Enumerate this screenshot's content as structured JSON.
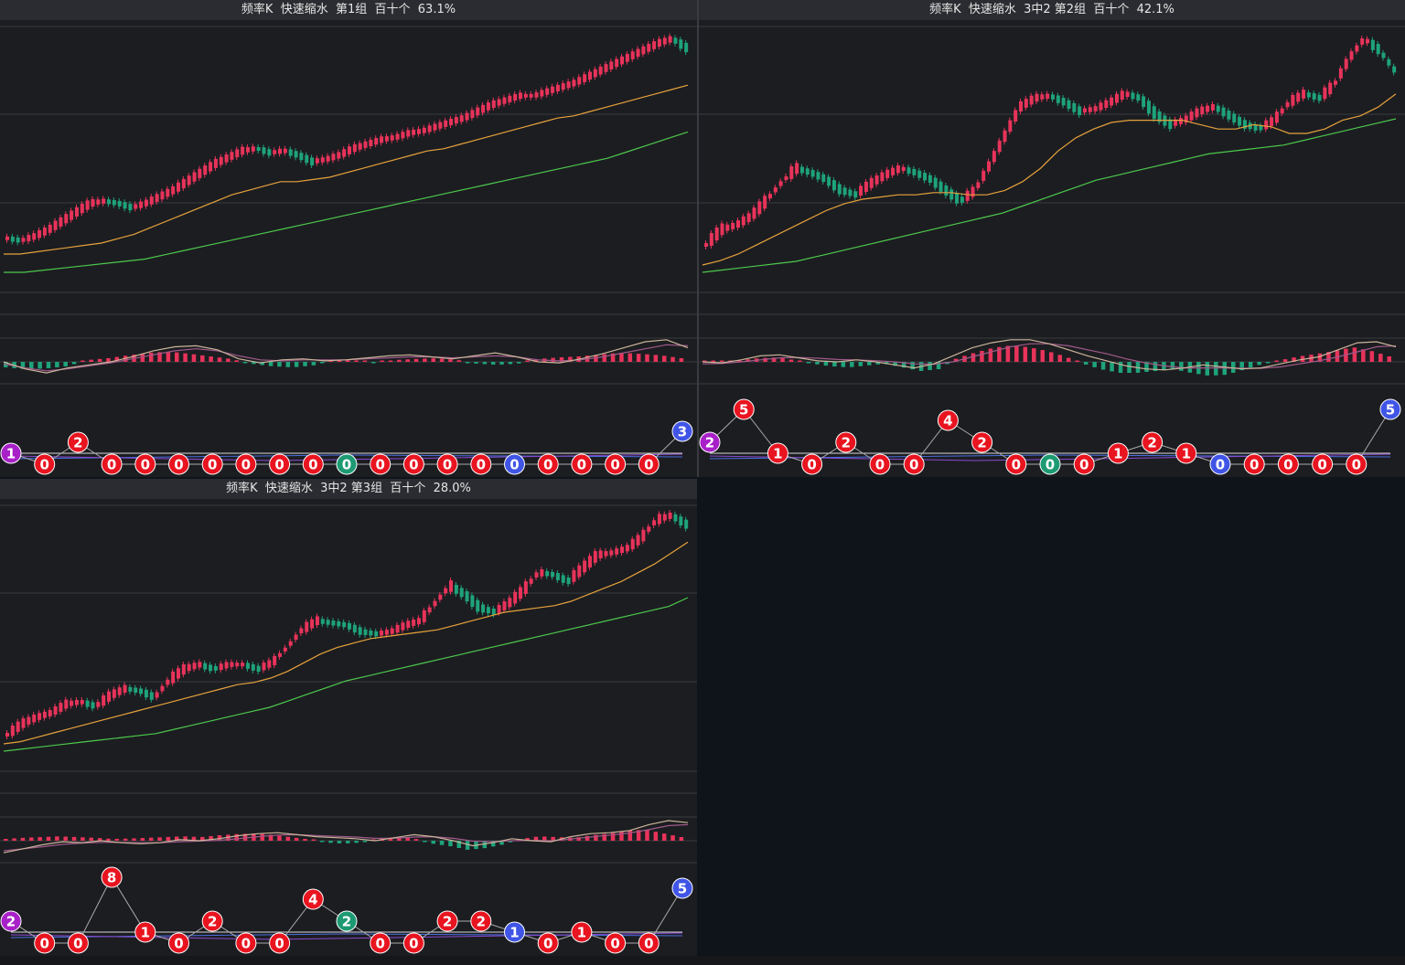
{
  "colors": {
    "up": "#e8335a",
    "down": "#1ea37a",
    "ma_short": "#e6a23c",
    "ma_long": "#4cc94c",
    "macd_dif": "#c9b49a",
    "macd_dea": "#a05a8a",
    "ball_red": "#e8141f",
    "ball_blue": "#4055e6",
    "ball_green": "#1d9a72",
    "ball_purple": "#a820c8"
  },
  "panels": [
    {
      "title": "频率K  快速缩水  第1组  百十个  63.1%",
      "trend": [
        0.08,
        0.07,
        0.09,
        0.12,
        0.16,
        0.2,
        0.24,
        0.25,
        0.24,
        0.22,
        0.24,
        0.27,
        0.3,
        0.34,
        0.38,
        0.42,
        0.45,
        0.48,
        0.49,
        0.47,
        0.48,
        0.46,
        0.43,
        0.44,
        0.46,
        0.49,
        0.51,
        0.53,
        0.54,
        0.56,
        0.57,
        0.59,
        0.61,
        0.63,
        0.66,
        0.69,
        0.71,
        0.73,
        0.73,
        0.75,
        0.77,
        0.79,
        0.82,
        0.85,
        0.88,
        0.91,
        0.94,
        0.97,
        0.99,
        0.95
      ],
      "ma_short": [
        0.05,
        0.05,
        0.06,
        0.07,
        0.08,
        0.09,
        0.1,
        0.12,
        0.14,
        0.17,
        0.2,
        0.23,
        0.26,
        0.29,
        0.32,
        0.34,
        0.36,
        0.38,
        0.38,
        0.39,
        0.4,
        0.42,
        0.44,
        0.46,
        0.48,
        0.5,
        0.52,
        0.53,
        0.55,
        0.57,
        0.59,
        0.61,
        0.63,
        0.65,
        0.67,
        0.68,
        0.7,
        0.72,
        0.74,
        0.76,
        0.78,
        0.8,
        0.82
      ],
      "ma_long": [
        0.0,
        0.0,
        0.01,
        0.02,
        0.03,
        0.04,
        0.05,
        0.06,
        0.08,
        0.1,
        0.12,
        0.14,
        0.16,
        0.18,
        0.2,
        0.22,
        0.24,
        0.26,
        0.28,
        0.3,
        0.32,
        0.34,
        0.36,
        0.38,
        0.4,
        0.42,
        0.44,
        0.46,
        0.48,
        0.5,
        0.52,
        0.55,
        0.58,
        0.61,
        0.64
      ],
      "dif": [
        0.0,
        -0.35,
        -0.55,
        -0.3,
        -0.15,
        0.0,
        0.25,
        0.55,
        0.75,
        0.8,
        0.6,
        0.15,
        -0.05,
        0.1,
        0.15,
        0.05,
        0.1,
        0.2,
        0.3,
        0.35,
        0.25,
        0.15,
        0.3,
        0.45,
        0.25,
        0.0,
        -0.05,
        0.15,
        0.4,
        0.7,
        1.0,
        1.1,
        0.7
      ],
      "dea": [
        -0.1,
        -0.3,
        -0.45,
        -0.35,
        -0.2,
        -0.05,
        0.15,
        0.35,
        0.55,
        0.65,
        0.55,
        0.3,
        0.1,
        0.05,
        0.1,
        0.1,
        0.1,
        0.15,
        0.2,
        0.25,
        0.25,
        0.2,
        0.25,
        0.3,
        0.25,
        0.1,
        0.05,
        0.1,
        0.25,
        0.45,
        0.65,
        0.85,
        0.8
      ],
      "hist": [
        -0.15,
        -0.2,
        -0.18,
        -0.12,
        0.05,
        0.1,
        0.18,
        0.25,
        0.28,
        0.22,
        0.15,
        0.08,
        -0.05,
        -0.12,
        -0.15,
        -0.1,
        0.04,
        0.05,
        -0.03,
        0.05,
        0.08,
        0.1,
        0.06,
        -0.05,
        -0.08,
        -0.05,
        0.08,
        0.12,
        0.15,
        0.2,
        0.25,
        0.22,
        0.18,
        0.1
      ],
      "balls": [
        {
          "v": "1",
          "c": "purple",
          "lvl": 1
        },
        {
          "v": "0",
          "c": "red",
          "lvl": 0
        },
        {
          "v": "2",
          "c": "red",
          "lvl": 2
        },
        {
          "v": "0",
          "c": "red",
          "lvl": 0
        },
        {
          "v": "0",
          "c": "red",
          "lvl": 0
        },
        {
          "v": "0",
          "c": "red",
          "lvl": 0
        },
        {
          "v": "0",
          "c": "red",
          "lvl": 0
        },
        {
          "v": "0",
          "c": "red",
          "lvl": 0
        },
        {
          "v": "0",
          "c": "red",
          "lvl": 0
        },
        {
          "v": "0",
          "c": "red",
          "lvl": 0
        },
        {
          "v": "0",
          "c": "green",
          "lvl": 0
        },
        {
          "v": "0",
          "c": "red",
          "lvl": 0
        },
        {
          "v": "0",
          "c": "red",
          "lvl": 0
        },
        {
          "v": "0",
          "c": "red",
          "lvl": 0
        },
        {
          "v": "0",
          "c": "red",
          "lvl": 0
        },
        {
          "v": "0",
          "c": "blue",
          "lvl": 0
        },
        {
          "v": "0",
          "c": "red",
          "lvl": 0
        },
        {
          "v": "0",
          "c": "red",
          "lvl": 0
        },
        {
          "v": "0",
          "c": "red",
          "lvl": 0
        },
        {
          "v": "0",
          "c": "red",
          "lvl": 0
        },
        {
          "v": "3",
          "c": "blue",
          "lvl": 3
        }
      ]
    },
    {
      "title": "频率K  快速缩水  3中2 第2组  百十个  42.1%",
      "trend": [
        0.05,
        0.12,
        0.14,
        0.18,
        0.25,
        0.33,
        0.4,
        0.38,
        0.35,
        0.3,
        0.28,
        0.33,
        0.37,
        0.4,
        0.38,
        0.35,
        0.3,
        0.25,
        0.3,
        0.42,
        0.55,
        0.68,
        0.72,
        0.73,
        0.7,
        0.66,
        0.67,
        0.7,
        0.74,
        0.72,
        0.65,
        0.6,
        0.62,
        0.66,
        0.68,
        0.64,
        0.6,
        0.58,
        0.62,
        0.7,
        0.74,
        0.72,
        0.78,
        0.9,
        0.99,
        0.94,
        0.85
      ],
      "ma_short": [
        0.0,
        0.02,
        0.05,
        0.09,
        0.13,
        0.17,
        0.21,
        0.25,
        0.28,
        0.3,
        0.31,
        0.32,
        0.32,
        0.33,
        0.33,
        0.32,
        0.32,
        0.34,
        0.38,
        0.44,
        0.52,
        0.58,
        0.62,
        0.65,
        0.66,
        0.66,
        0.66,
        0.66,
        0.64,
        0.62,
        0.62,
        0.64,
        0.63,
        0.6,
        0.6,
        0.62,
        0.66,
        0.68,
        0.72,
        0.78
      ],
      "ma_long": [
        0.0,
        0.01,
        0.02,
        0.03,
        0.04,
        0.05,
        0.07,
        0.09,
        0.11,
        0.13,
        0.15,
        0.17,
        0.19,
        0.21,
        0.23,
        0.25,
        0.27,
        0.3,
        0.33,
        0.36,
        0.39,
        0.42,
        0.44,
        0.46,
        0.48,
        0.5,
        0.52,
        0.54,
        0.55,
        0.56,
        0.57,
        0.58,
        0.6,
        0.62,
        0.64,
        0.66,
        0.68,
        0.7
      ],
      "dif": [
        0.0,
        -0.05,
        0.1,
        0.3,
        0.35,
        0.2,
        0.05,
        0.0,
        0.1,
        0.0,
        -0.15,
        -0.3,
        -0.1,
        0.3,
        0.7,
        0.95,
        1.1,
        1.1,
        0.9,
        0.6,
        0.3,
        0.05,
        -0.2,
        -0.35,
        -0.4,
        -0.3,
        -0.15,
        -0.25,
        -0.35,
        -0.3,
        -0.1,
        0.1,
        0.25,
        0.6,
        0.95,
        1.0,
        0.75
      ],
      "dea": [
        -0.1,
        -0.08,
        0.0,
        0.1,
        0.2,
        0.22,
        0.18,
        0.12,
        0.1,
        0.06,
        0.0,
        -0.1,
        -0.12,
        0.0,
        0.25,
        0.5,
        0.75,
        0.9,
        0.9,
        0.8,
        0.6,
        0.4,
        0.15,
        -0.05,
        -0.2,
        -0.3,
        -0.3,
        -0.3,
        -0.32,
        -0.32,
        -0.25,
        -0.1,
        0.05,
        0.25,
        0.5,
        0.75,
        0.8
      ],
      "hist": [
        0.02,
        0.03,
        0.05,
        0.1,
        0.12,
        0.05,
        -0.05,
        -0.12,
        -0.15,
        -0.1,
        -0.05,
        -0.15,
        -0.25,
        -0.2,
        0.1,
        0.25,
        0.38,
        0.45,
        0.4,
        0.3,
        0.15,
        -0.05,
        -0.2,
        -0.3,
        -0.3,
        -0.25,
        -0.2,
        -0.3,
        -0.38,
        -0.35,
        -0.2,
        -0.05,
        0.05,
        0.15,
        0.22,
        0.3,
        0.4,
        0.3,
        0.15
      ],
      "balls": [
        {
          "v": "2",
          "c": "purple",
          "lvl": 2
        },
        {
          "v": "5",
          "c": "red",
          "lvl": 5
        },
        {
          "v": "1",
          "c": "red",
          "lvl": 1
        },
        {
          "v": "0",
          "c": "red",
          "lvl": 0
        },
        {
          "v": "2",
          "c": "red",
          "lvl": 2
        },
        {
          "v": "0",
          "c": "red",
          "lvl": 0
        },
        {
          "v": "0",
          "c": "red",
          "lvl": 0
        },
        {
          "v": "4",
          "c": "red",
          "lvl": 4
        },
        {
          "v": "2",
          "c": "red",
          "lvl": 2
        },
        {
          "v": "0",
          "c": "red",
          "lvl": 0
        },
        {
          "v": "0",
          "c": "green",
          "lvl": 0
        },
        {
          "v": "0",
          "c": "red",
          "lvl": 0
        },
        {
          "v": "1",
          "c": "red",
          "lvl": 1
        },
        {
          "v": "2",
          "c": "red",
          "lvl": 2
        },
        {
          "v": "1",
          "c": "red",
          "lvl": 1
        },
        {
          "v": "0",
          "c": "blue",
          "lvl": 0
        },
        {
          "v": "0",
          "c": "red",
          "lvl": 0
        },
        {
          "v": "0",
          "c": "red",
          "lvl": 0
        },
        {
          "v": "0",
          "c": "red",
          "lvl": 0
        },
        {
          "v": "0",
          "c": "red",
          "lvl": 0
        },
        {
          "v": "5",
          "c": "blue",
          "lvl": 5
        }
      ]
    },
    {
      "title": "频率K  快速缩水  3中2 第3组  百十个  28.0%",
      "trend": [
        0.0,
        0.05,
        0.08,
        0.1,
        0.14,
        0.15,
        0.13,
        0.18,
        0.21,
        0.2,
        0.17,
        0.25,
        0.3,
        0.32,
        0.3,
        0.32,
        0.32,
        0.3,
        0.33,
        0.4,
        0.48,
        0.52,
        0.51,
        0.5,
        0.47,
        0.46,
        0.47,
        0.5,
        0.52,
        0.6,
        0.68,
        0.64,
        0.58,
        0.56,
        0.6,
        0.66,
        0.74,
        0.73,
        0.7,
        0.76,
        0.82,
        0.83,
        0.85,
        0.9,
        0.98,
        1.0,
        0.96
      ],
      "ma_short": [
        0.0,
        0.01,
        0.03,
        0.05,
        0.07,
        0.09,
        0.11,
        0.13,
        0.15,
        0.17,
        0.19,
        0.21,
        0.23,
        0.25,
        0.27,
        0.28,
        0.3,
        0.33,
        0.37,
        0.41,
        0.44,
        0.46,
        0.48,
        0.49,
        0.5,
        0.51,
        0.52,
        0.54,
        0.56,
        0.58,
        0.6,
        0.61,
        0.62,
        0.63,
        0.65,
        0.68,
        0.71,
        0.74,
        0.78,
        0.82,
        0.87,
        0.92
      ],
      "ma_long": [
        0.0,
        0.01,
        0.02,
        0.03,
        0.04,
        0.05,
        0.06,
        0.07,
        0.08,
        0.1,
        0.12,
        0.14,
        0.16,
        0.18,
        0.2,
        0.23,
        0.26,
        0.29,
        0.32,
        0.34,
        0.36,
        0.38,
        0.4,
        0.42,
        0.44,
        0.46,
        0.48,
        0.5,
        0.52,
        0.54,
        0.56,
        0.58,
        0.6,
        0.62,
        0.64,
        0.66,
        0.7
      ],
      "dif": [
        -0.6,
        -0.4,
        -0.2,
        -0.05,
        -0.1,
        0.0,
        -0.1,
        -0.15,
        -0.1,
        0.05,
        0.0,
        0.1,
        0.25,
        0.35,
        0.4,
        0.3,
        0.2,
        0.15,
        0.1,
        0.0,
        0.15,
        0.3,
        0.2,
        0.0,
        -0.25,
        -0.1,
        0.1,
        0.0,
        -0.05,
        0.2,
        0.35,
        0.4,
        0.5,
        0.8,
        1.0,
        0.9
      ],
      "dea": [
        -0.5,
        -0.4,
        -0.3,
        -0.18,
        -0.12,
        -0.08,
        -0.08,
        -0.1,
        -0.1,
        -0.05,
        -0.02,
        0.02,
        0.1,
        0.2,
        0.28,
        0.3,
        0.26,
        0.22,
        0.18,
        0.12,
        0.12,
        0.18,
        0.2,
        0.12,
        -0.02,
        -0.05,
        0.0,
        0.02,
        0.0,
        0.08,
        0.18,
        0.28,
        0.38,
        0.55,
        0.75,
        0.8
      ],
      "hist": [
        0.05,
        0.08,
        0.1,
        0.12,
        0.1,
        0.08,
        0.05,
        0.06,
        0.08,
        0.1,
        0.12,
        0.1,
        0.15,
        0.18,
        0.2,
        0.16,
        0.1,
        0.04,
        -0.05,
        -0.08,
        -0.05,
        0.05,
        0.1,
        0.06,
        -0.08,
        -0.15,
        -0.25,
        -0.2,
        -0.1,
        0.05,
        0.12,
        0.1,
        0.08,
        0.15,
        0.2,
        0.28,
        0.3,
        0.2,
        0.1
      ],
      "balls": [
        {
          "v": "2",
          "c": "purple",
          "lvl": 2
        },
        {
          "v": "0",
          "c": "red",
          "lvl": 0
        },
        {
          "v": "0",
          "c": "red",
          "lvl": 0
        },
        {
          "v": "8",
          "c": "red",
          "lvl": 8
        },
        {
          "v": "1",
          "c": "red",
          "lvl": 1
        },
        {
          "v": "0",
          "c": "red",
          "lvl": 0
        },
        {
          "v": "2",
          "c": "red",
          "lvl": 2
        },
        {
          "v": "0",
          "c": "red",
          "lvl": 0
        },
        {
          "v": "0",
          "c": "red",
          "lvl": 0
        },
        {
          "v": "4",
          "c": "red",
          "lvl": 4
        },
        {
          "v": "2",
          "c": "green",
          "lvl": 2
        },
        {
          "v": "0",
          "c": "red",
          "lvl": 0
        },
        {
          "v": "0",
          "c": "red",
          "lvl": 0
        },
        {
          "v": "2",
          "c": "red",
          "lvl": 2
        },
        {
          "v": "2",
          "c": "red",
          "lvl": 2
        },
        {
          "v": "1",
          "c": "blue",
          "lvl": 1
        },
        {
          "v": "0",
          "c": "red",
          "lvl": 0
        },
        {
          "v": "1",
          "c": "red",
          "lvl": 1
        },
        {
          "v": "0",
          "c": "red",
          "lvl": 0
        },
        {
          "v": "0",
          "c": "red",
          "lvl": 0
        },
        {
          "v": "5",
          "c": "blue",
          "lvl": 5
        }
      ]
    }
  ]
}
